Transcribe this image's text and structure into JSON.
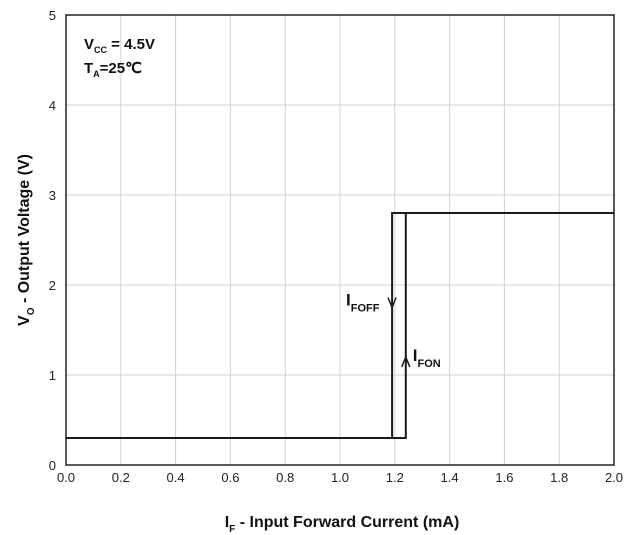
{
  "chart_data": {
    "type": "line",
    "xlabel": {
      "main": "I",
      "sub": "F",
      "rest": " - Input Forward Current (mA)"
    },
    "ylabel": {
      "main": "V",
      "sub": "O",
      "rest": " - Output Voltage (V)"
    },
    "xlim": [
      0.0,
      2.0
    ],
    "ylim": [
      0,
      5
    ],
    "x_ticks": [
      "0.0",
      "0.2",
      "0.4",
      "0.6",
      "0.8",
      "1.0",
      "1.2",
      "1.4",
      "1.6",
      "1.8",
      "2.0"
    ],
    "y_ticks": [
      "0",
      "1",
      "2",
      "3",
      "4",
      "5"
    ],
    "grid": true,
    "series": [
      {
        "x": [
          0.0,
          1.19,
          1.19,
          2.0
        ],
        "y": [
          0.3,
          0.3,
          2.8,
          2.8
        ]
      },
      {
        "x": [
          0.0,
          1.24,
          1.24,
          2.0
        ],
        "y": [
          0.3,
          0.3,
          2.8,
          2.8
        ]
      }
    ],
    "annotations": [
      {
        "main": "I",
        "sub": "FOFF",
        "arrow": "down",
        "x": 1.19,
        "y": 1.75
      },
      {
        "main": "I",
        "sub": "FON",
        "arrow": "up",
        "x": 1.24,
        "y": 1.2
      }
    ],
    "conditions": [
      {
        "main": "V",
        "sub": "CC",
        "rest": " = 4.5V"
      },
      {
        "main": "T",
        "sub": "A",
        "rest": "=25℃"
      }
    ]
  }
}
